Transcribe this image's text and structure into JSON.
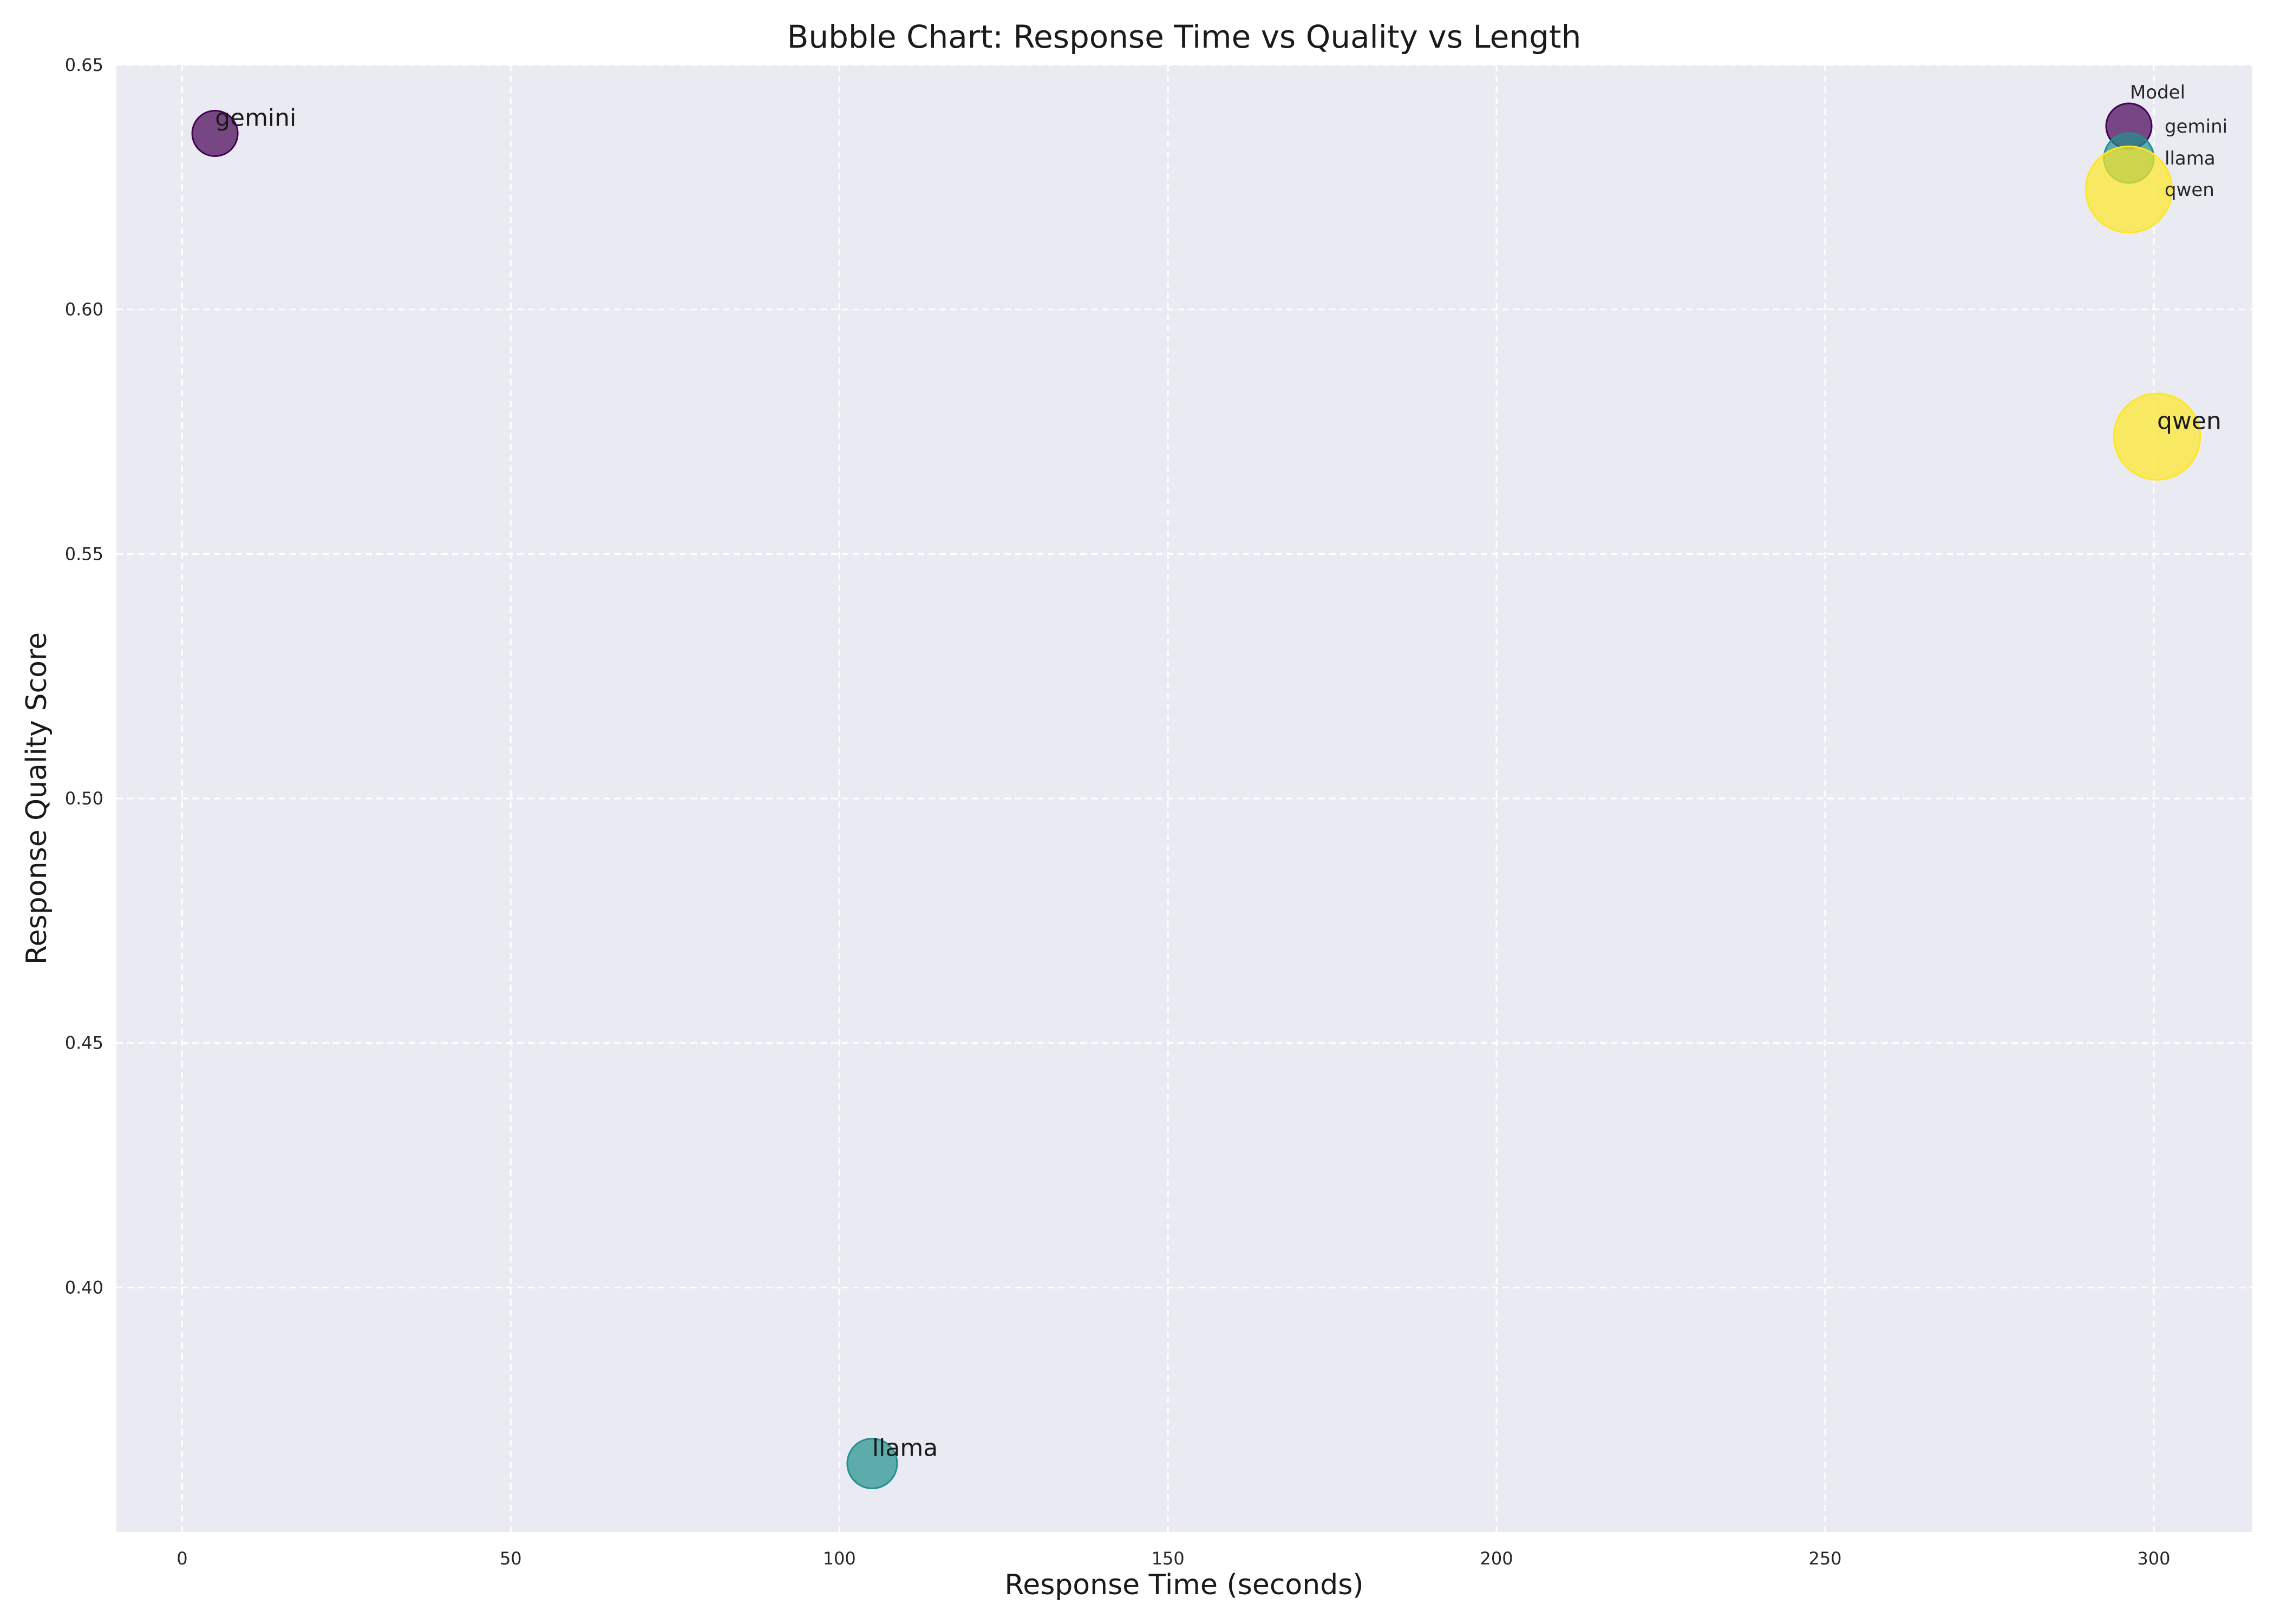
{
  "chart_data": {
    "type": "scatter",
    "title": "Bubble Chart: Response Time vs Quality vs Length",
    "xlabel": "Response Time (seconds)",
    "ylabel": "Response Quality Score",
    "xlim": [
      -10,
      315
    ],
    "ylim": [
      0.35,
      0.65
    ],
    "xticks": [
      0,
      50,
      100,
      150,
      200,
      250,
      300
    ],
    "yticks": [
      0.4,
      0.45,
      0.5,
      0.55,
      0.6,
      0.65
    ],
    "xtick_labels": [
      "0",
      "50",
      "100",
      "150",
      "200",
      "250",
      "300"
    ],
    "ytick_labels": [
      "0.40",
      "0.45",
      "0.50",
      "0.55",
      "0.60",
      "0.65"
    ],
    "grid": true,
    "legend": {
      "title": "Model",
      "position": "top-right"
    },
    "series": [
      {
        "name": "gemini",
        "x": 5,
        "y": 0.636,
        "size": 1.0,
        "color": "#440154"
      },
      {
        "name": "llama",
        "x": 105,
        "y": 0.364,
        "size": 1.2,
        "color": "#21908d"
      },
      {
        "name": "qwen",
        "x": 300.5,
        "y": 0.574,
        "size": 3.6,
        "color": "#fde725"
      }
    ]
  }
}
